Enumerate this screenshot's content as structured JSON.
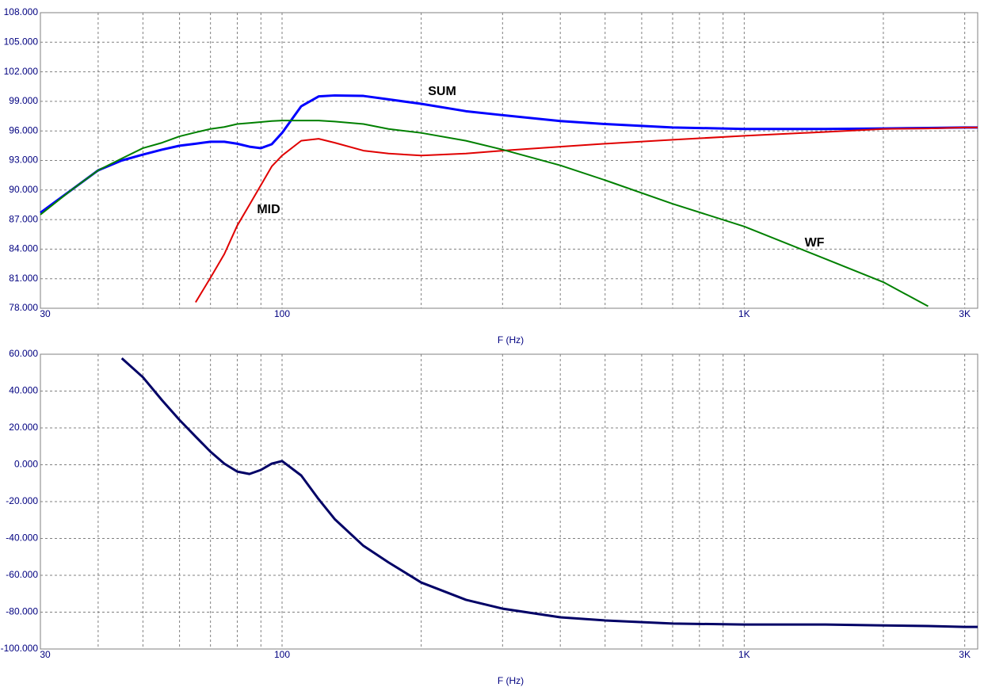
{
  "chart_data": [
    {
      "type": "line",
      "xlabel": "F (Hz)",
      "xscale": "log",
      "grid": true,
      "xlim": [
        30,
        3200
      ],
      "ylim": [
        78,
        108
      ],
      "xticks": [
        30,
        100,
        {
          "value": 1000,
          "label": "1K"
        },
        {
          "value": 3000,
          "label": "3K"
        }
      ],
      "x_minor_ticks": [
        40,
        50,
        60,
        70,
        80,
        90,
        200,
        300,
        400,
        500,
        600,
        700,
        800,
        900,
        2000
      ],
      "yticks": [
        {
          "value": 78,
          "label": "78.000"
        },
        {
          "value": 81,
          "label": "81.000"
        },
        {
          "value": 84,
          "label": "84.000"
        },
        {
          "value": 87,
          "label": "87.000"
        },
        {
          "value": 90,
          "label": "90.000"
        },
        {
          "value": 93,
          "label": "93.000"
        },
        {
          "value": 96,
          "label": "96.000"
        },
        {
          "value": 99,
          "label": "99.000"
        },
        {
          "value": 102,
          "label": "102.000"
        },
        {
          "value": 105,
          "label": "105.000"
        },
        {
          "value": 108,
          "label": "108.000"
        }
      ],
      "x": [
        30,
        35,
        40,
        45,
        50,
        55,
        60,
        65,
        70,
        75,
        80,
        85,
        90,
        95,
        100,
        110,
        120,
        130,
        150,
        170,
        200,
        250,
        300,
        400,
        500,
        700,
        1000,
        1500,
        2000,
        2500,
        3000,
        3200
      ],
      "series": [
        {
          "name": "SUM",
          "color": "#0000ff",
          "values": [
            87.7,
            90.0,
            92.0,
            93.0,
            93.6,
            94.1,
            94.5,
            94.7,
            94.9,
            94.9,
            94.7,
            94.4,
            94.25,
            94.65,
            95.8,
            98.5,
            99.5,
            99.6,
            99.55,
            99.2,
            98.75,
            98.0,
            97.6,
            97.0,
            96.7,
            96.35,
            96.2,
            96.2,
            96.25,
            96.3,
            96.35,
            96.35
          ]
        },
        {
          "name": "MID",
          "color": "#e00000",
          "values": [
            null,
            null,
            null,
            null,
            null,
            null,
            null,
            78.6,
            81.1,
            83.5,
            86.4,
            88.5,
            90.5,
            92.4,
            93.5,
            95.0,
            95.2,
            94.8,
            94.0,
            93.7,
            93.5,
            93.7,
            94.0,
            94.4,
            94.7,
            95.1,
            95.5,
            95.9,
            96.2,
            96.25,
            96.35,
            96.35
          ]
        },
        {
          "name": "WF",
          "color": "#008000",
          "values": [
            87.5,
            90.0,
            92.0,
            93.2,
            94.25,
            94.8,
            95.45,
            95.85,
            96.2,
            96.4,
            96.7,
            96.8,
            96.9,
            97.0,
            97.05,
            97.05,
            97.05,
            96.95,
            96.7,
            96.2,
            95.8,
            95.0,
            94.1,
            92.5,
            91.0,
            88.6,
            86.3,
            83.0,
            80.65,
            78.2,
            null,
            null
          ]
        }
      ]
    },
    {
      "type": "line",
      "xlabel": "F (Hz)",
      "xscale": "log",
      "grid": true,
      "xlim": [
        30,
        3200
      ],
      "ylim": [
        -100,
        60
      ],
      "xticks": [
        30,
        100,
        {
          "value": 1000,
          "label": "1K"
        },
        {
          "value": 3000,
          "label": "3K"
        }
      ],
      "x_minor_ticks": [
        40,
        50,
        60,
        70,
        80,
        90,
        200,
        300,
        400,
        500,
        600,
        700,
        800,
        900,
        2000
      ],
      "yticks": [
        {
          "value": -100,
          "label": "-100.000"
        },
        {
          "value": -80,
          "label": "-80.000"
        },
        {
          "value": -60,
          "label": "-60.000"
        },
        {
          "value": -40,
          "label": "-40.000"
        },
        {
          "value": -20,
          "label": "-20.000"
        },
        {
          "value": 0,
          "label": "0.000"
        },
        {
          "value": 20,
          "label": "20.000"
        },
        {
          "value": 40,
          "label": "40.000"
        },
        {
          "value": 60,
          "label": "60.000"
        }
      ],
      "x": [
        30,
        35,
        40,
        45,
        50,
        55,
        60,
        65,
        70,
        75,
        80,
        85,
        90,
        95,
        100,
        110,
        120,
        130,
        150,
        170,
        200,
        250,
        300,
        400,
        500,
        700,
        1000,
        1500,
        2000,
        2500,
        3000,
        3200
      ],
      "series": [
        {
          "color": "#000066",
          "values": [
            null,
            null,
            null,
            57.8,
            47.5,
            35,
            24.3,
            15.3,
            7.1,
            0.6,
            -3.7,
            -5.0,
            -2.8,
            0.6,
            2.0,
            -5.8,
            -18.7,
            -29.5,
            -44,
            -53,
            -63.9,
            -73.3,
            -78.1,
            -82.8,
            -84.5,
            -86.2,
            -86.7,
            -86.7,
            -87.2,
            -87.5,
            -88,
            -88
          ]
        }
      ]
    }
  ]
}
